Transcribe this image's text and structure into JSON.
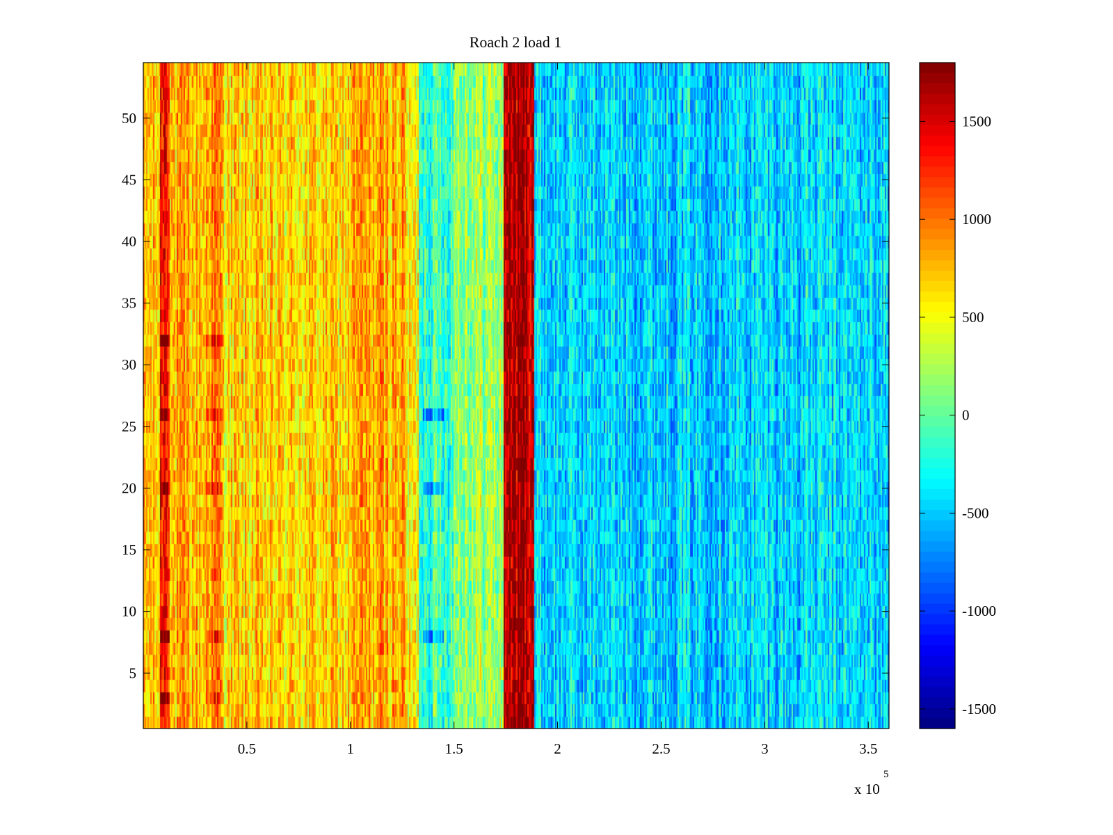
{
  "chart_data": {
    "type": "heatmap",
    "title": "Roach 2 load 1",
    "xlabel": "",
    "ylabel": "",
    "x_multiplier_label": "x 10",
    "x_multiplier_exponent": "5",
    "xlim": [
      0,
      3.6
    ],
    "ylim": [
      0.5,
      54.5
    ],
    "x_ticks": [
      0.5,
      1,
      1.5,
      2,
      2.5,
      3,
      3.5
    ],
    "x_tick_labels": [
      "0.5",
      "1",
      "1.5",
      "2",
      "2.5",
      "3",
      "3.5"
    ],
    "y_ticks": [
      5,
      10,
      15,
      20,
      25,
      30,
      35,
      40,
      45,
      50
    ],
    "y_tick_labels": [
      "5",
      "10",
      "15",
      "20",
      "25",
      "30",
      "35",
      "40",
      "45",
      "50"
    ],
    "rows": 54,
    "colormap": "jet",
    "clim": [
      -1600,
      1800
    ],
    "colorbar_ticks": [
      1500,
      1000,
      500,
      0,
      -500,
      -1000,
      -1500
    ],
    "colorbar_tick_labels": [
      "1500",
      "1000",
      "500",
      "0",
      "-500",
      "-1000",
      "-1500"
    ],
    "bands": [
      {
        "x_start": 0.0,
        "x_end": 0.08,
        "mean_value": 700
      },
      {
        "x_start": 0.08,
        "x_end": 0.13,
        "mean_value": 1400
      },
      {
        "x_start": 0.13,
        "x_end": 0.3,
        "mean_value": 750
      },
      {
        "x_start": 0.3,
        "x_end": 0.38,
        "mean_value": 900
      },
      {
        "x_start": 0.38,
        "x_end": 1.0,
        "mean_value": 650
      },
      {
        "x_start": 1.0,
        "x_end": 1.27,
        "mean_value": 800
      },
      {
        "x_start": 1.27,
        "x_end": 1.33,
        "mean_value": 500
      },
      {
        "x_start": 1.33,
        "x_end": 1.5,
        "mean_value": -100
      },
      {
        "x_start": 1.5,
        "x_end": 1.74,
        "mean_value": 200
      },
      {
        "x_start": 1.74,
        "x_end": 1.89,
        "mean_value": 1650
      },
      {
        "x_start": 1.89,
        "x_end": 3.6,
        "mean_value": -450
      }
    ],
    "hot_rows": [
      3,
      8,
      20,
      26,
      32
    ],
    "cold_rows": [
      8,
      20,
      26
    ]
  }
}
